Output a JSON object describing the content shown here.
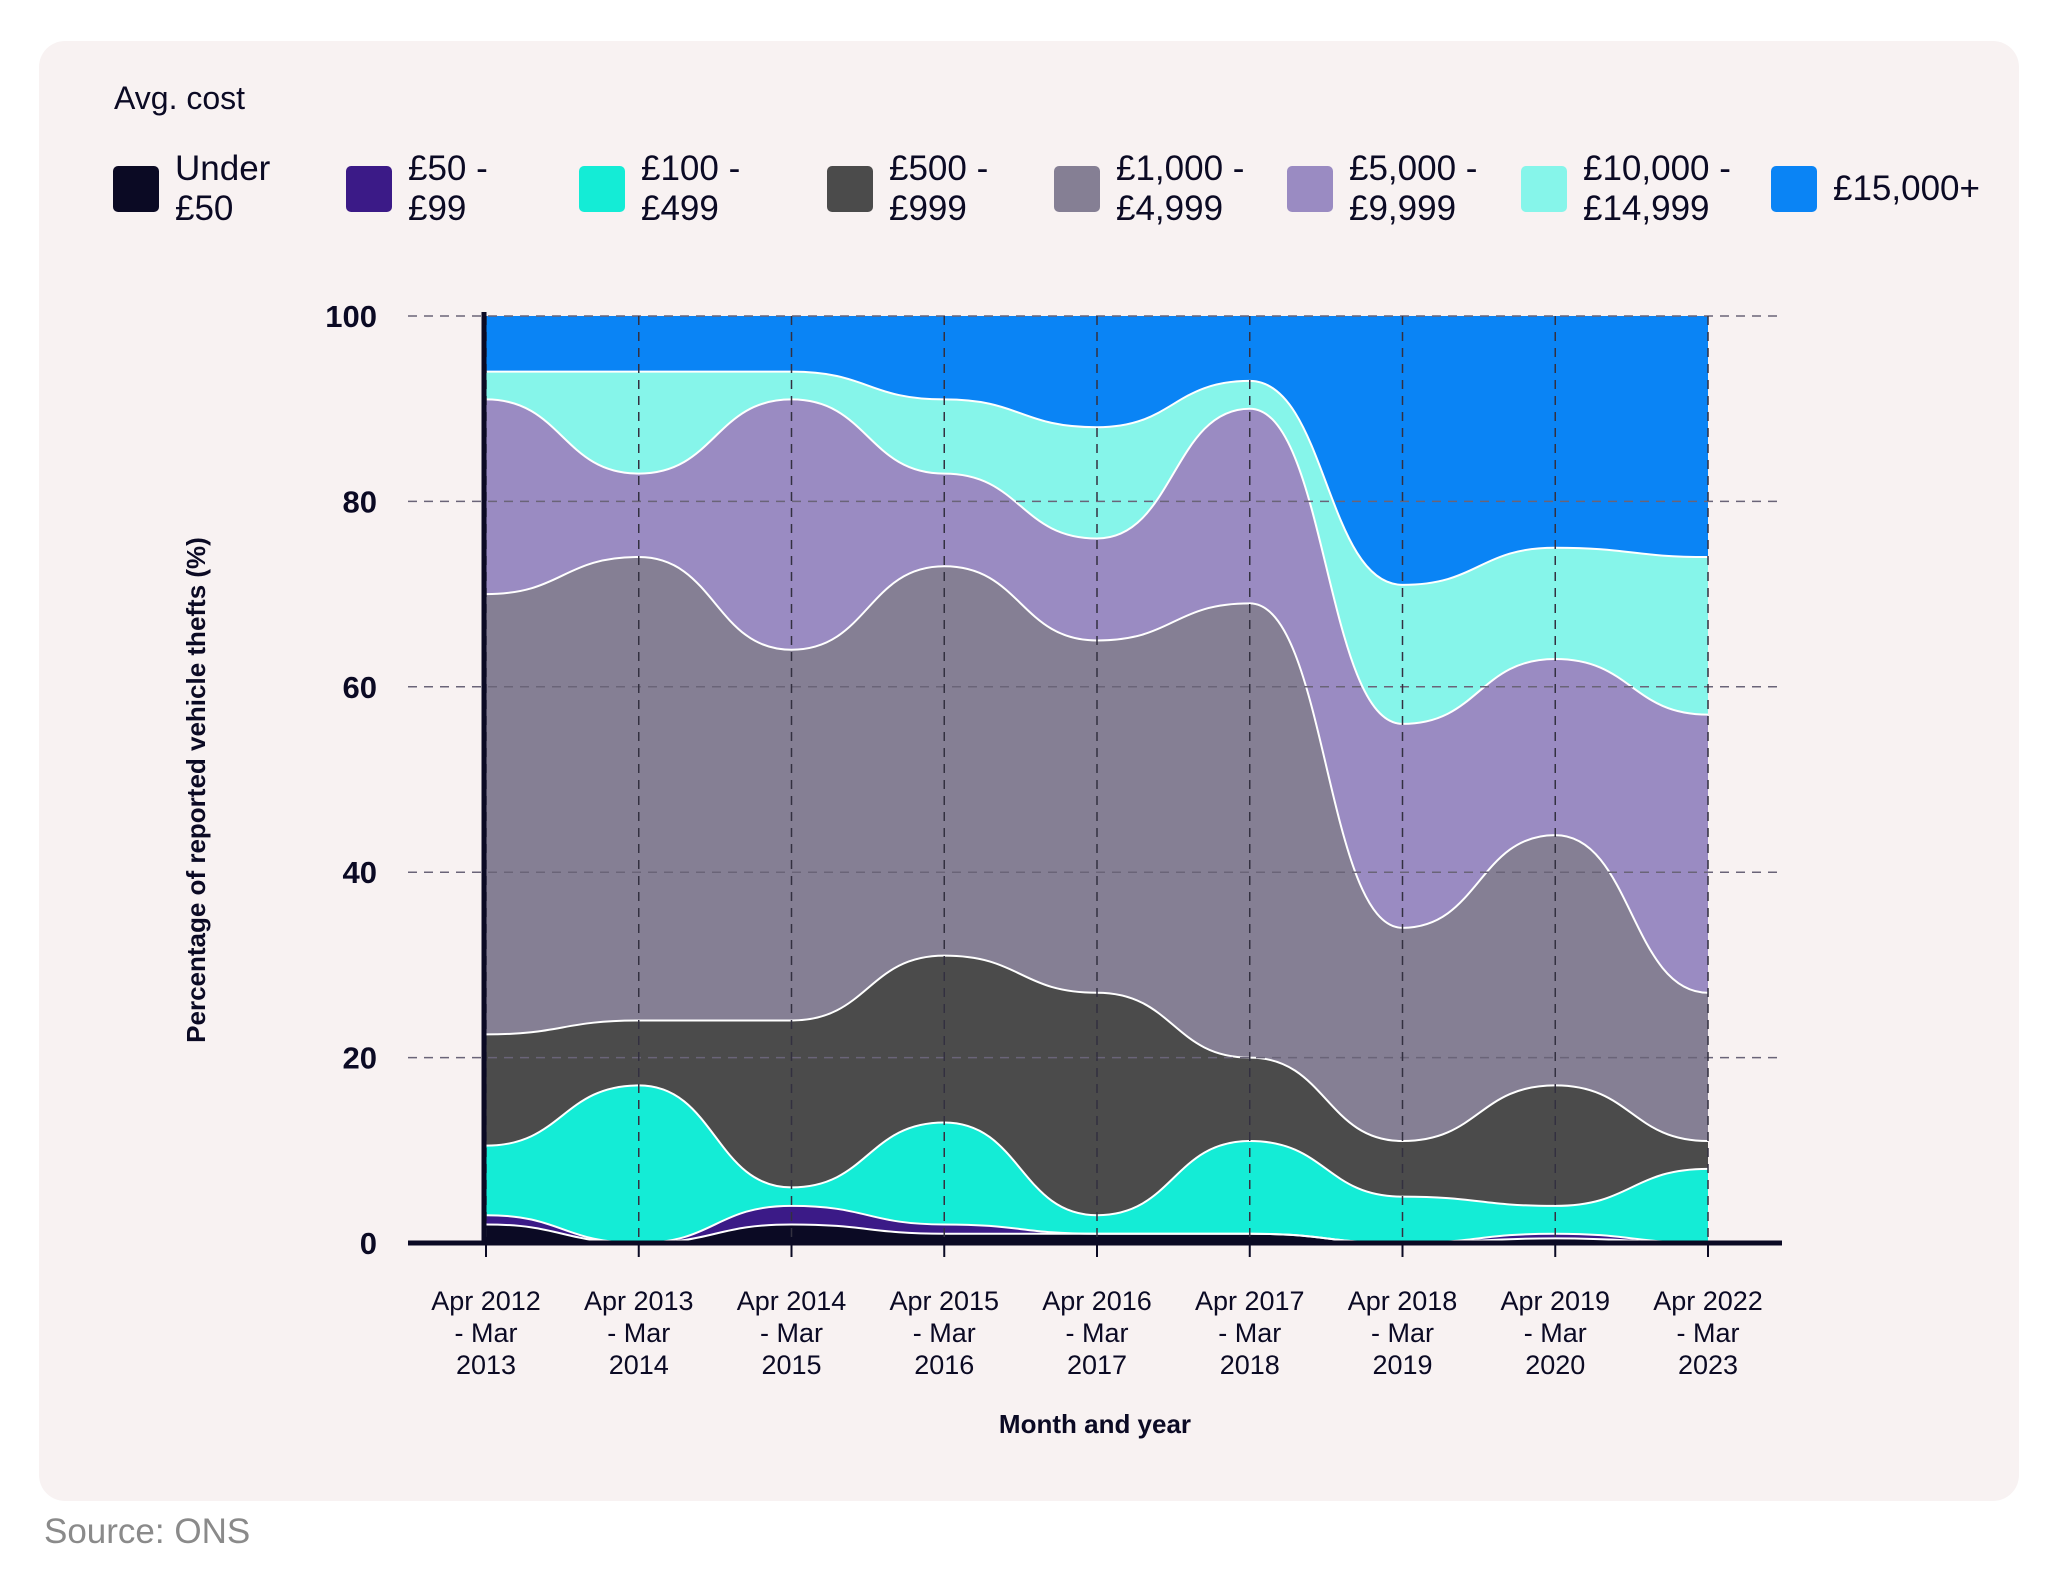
{
  "legend_title": "Avg. cost",
  "source": "Source: ONS",
  "chart_data": {
    "type": "area",
    "stacked": true,
    "normalized_to": 100,
    "xlabel": "Month and year",
    "ylabel": "Percentage of reported vehicle thefts (%)",
    "ylim": [
      0,
      100
    ],
    "yticks": [
      0,
      20,
      40,
      60,
      80,
      100
    ],
    "grid": "dashed, horizontal and vertical",
    "legend": "top",
    "categories": [
      [
        "Apr 2012",
        "- Mar",
        "2013"
      ],
      [
        "Apr 2013",
        "- Mar",
        "2014"
      ],
      [
        "Apr 2014",
        "- Mar",
        "2015"
      ],
      [
        "Apr 2015",
        "- Mar",
        "2016"
      ],
      [
        "Apr 2016",
        "- Mar",
        "2017"
      ],
      [
        "Apr 2017",
        "- Mar",
        "2018"
      ],
      [
        "Apr 2018",
        "- Mar",
        "2019"
      ],
      [
        "Apr 2019",
        "- Mar",
        "2020"
      ],
      [
        "Apr 2022",
        "- Mar",
        "2023"
      ]
    ],
    "series": [
      {
        "name": "Under £50",
        "color": "#0b0a24",
        "values": [
          2,
          0,
          2,
          1,
          1,
          1,
          0,
          0.5,
          0
        ]
      },
      {
        "name": "£50 - £99",
        "color": "#3b1a87",
        "values": [
          1,
          0,
          2,
          1,
          0,
          0,
          0,
          0.5,
          0
        ]
      },
      {
        "name": "£100 - £499",
        "color": "#14ecd6",
        "values": [
          7.5,
          17,
          2,
          11,
          2,
          10,
          5,
          3,
          8
        ]
      },
      {
        "name": "£500 - £999",
        "color": "#4b4b4b",
        "values": [
          12,
          7,
          18,
          18,
          24,
          9,
          6,
          13,
          3
        ]
      },
      {
        "name": "£1,000 - £4,999",
        "color": "#857f94",
        "values": [
          47.5,
          50,
          40,
          42,
          38,
          49,
          23,
          27,
          16
        ]
      },
      {
        "name": "£5,000 - £9,999",
        "color": "#9a8bc2",
        "values": [
          21,
          9,
          27,
          10,
          11,
          21,
          22,
          19,
          30
        ]
      },
      {
        "name": "£10,000 - £14,999",
        "color": "#86f5ea",
        "values": [
          3,
          11,
          3,
          8,
          12,
          3,
          15,
          12,
          17
        ]
      },
      {
        "name": "£15,000+",
        "color": "#0a84f5",
        "values": [
          6,
          6,
          6,
          9,
          12,
          7,
          29,
          25,
          26
        ]
      }
    ]
  },
  "legend_labels": [
    "Under\n£50",
    "£50 -\n£99",
    "£100 -\n£499",
    "£500 -\n£999",
    "£1,000 -\n£4,999",
    "£5,000 -\n£9,999",
    "£10,000 -\n£14,999",
    "£15,000+"
  ]
}
